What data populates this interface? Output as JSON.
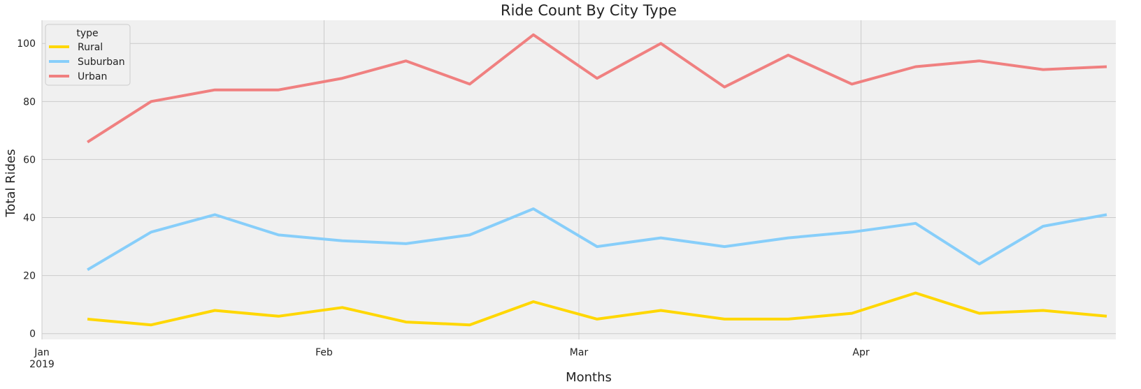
{
  "chart_data": {
    "type": "line",
    "title": "Ride Count By City Type",
    "xlabel": "Months",
    "ylabel": "Total Rides",
    "x": [
      "2019-01-06",
      "2019-01-13",
      "2019-01-20",
      "2019-01-27",
      "2019-02-03",
      "2019-02-10",
      "2019-02-17",
      "2019-02-24",
      "2019-03-03",
      "2019-03-10",
      "2019-03-17",
      "2019-03-24",
      "2019-03-31",
      "2019-04-07",
      "2019-04-14",
      "2019-04-21",
      "2019-04-28"
    ],
    "x_ticks": [
      {
        "x": "2019-01-01",
        "label": "Jan",
        "sublabel": "2019"
      },
      {
        "x": "2019-02-01",
        "label": "Feb",
        "sublabel": ""
      },
      {
        "x": "2019-03-01",
        "label": "Mar",
        "sublabel": ""
      },
      {
        "x": "2019-04-01",
        "label": "Apr",
        "sublabel": ""
      }
    ],
    "xlim": [
      "2019-01-01",
      "2019-04-29"
    ],
    "ylim": [
      -2,
      108
    ],
    "yticks": [
      0,
      20,
      40,
      60,
      80,
      100
    ],
    "grid": true,
    "legend": {
      "title": "type",
      "placement": "top-left"
    },
    "series": [
      {
        "name": "Rural",
        "color": "#FFD700",
        "values": [
          5,
          3,
          8,
          6,
          9,
          4,
          3,
          11,
          5,
          8,
          5,
          5,
          7,
          14,
          7,
          8,
          6
        ]
      },
      {
        "name": "Suburban",
        "color": "#87CEFA",
        "values": [
          22,
          35,
          41,
          34,
          32,
          31,
          34,
          43,
          30,
          33,
          30,
          33,
          35,
          38,
          24,
          37,
          41
        ]
      },
      {
        "name": "Urban",
        "color": "#F08080",
        "values": [
          66,
          80,
          84,
          84,
          88,
          94,
          86,
          103,
          88,
          100,
          85,
          96,
          86,
          92,
          94,
          91,
          92
        ]
      }
    ]
  }
}
